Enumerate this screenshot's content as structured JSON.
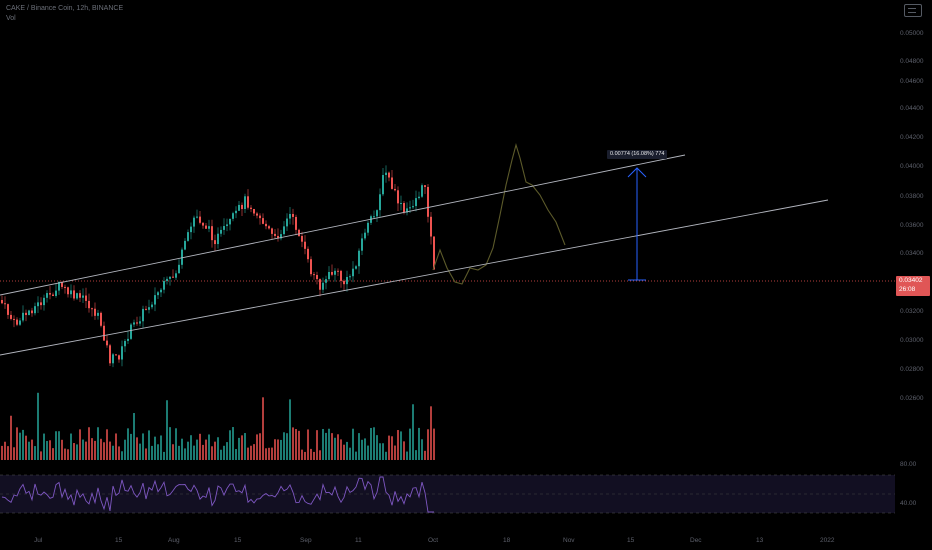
{
  "header": {
    "title": "CAKE / Binance Coin, 12h, BINANCE",
    "volume_label": "Vol"
  },
  "price_axis": [
    "0.05000",
    "0.04800",
    "0.04600",
    "0.04400",
    "0.04200",
    "0.04000",
    "0.03800",
    "0.03600",
    "0.03400",
    "0.03200",
    "0.03000",
    "0.02800",
    "0.02600"
  ],
  "current_price": {
    "value": "0.03402",
    "countdown": "26:08"
  },
  "rsi_axis": [
    "80.00",
    "40.00"
  ],
  "time_axis": [
    "Jul",
    "15",
    "Aug",
    "15",
    "Sep",
    "11",
    "Oct",
    "18",
    "Nov",
    "15",
    "Dec",
    "13",
    "2022"
  ],
  "measure": {
    "label": "0.00774 (16.08%) 774"
  },
  "colors": {
    "up": "#26a69a",
    "down": "#ef5350",
    "rsi": "#7e57c2",
    "line": "#b2b5be",
    "measure": "#2962ff",
    "projection": "#5c5a2a"
  },
  "icons": {
    "camera": "camera-icon"
  }
}
